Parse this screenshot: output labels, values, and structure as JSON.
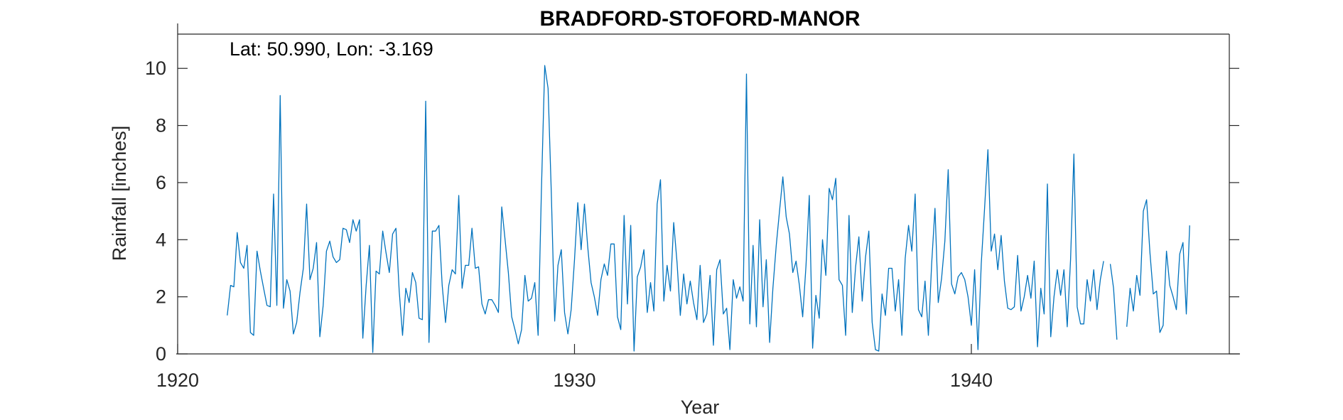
{
  "chart_data": {
    "type": "line",
    "title": "BRADFORD-STOFORD-MANOR",
    "annotation": "Lat: 50.990, Lon: -3.169",
    "xlabel": "Year",
    "ylabel": "Rainfall [inches]",
    "xlim": [
      1920,
      1946.5
    ],
    "ylim": [
      0,
      11.2
    ],
    "xticks": [
      1920,
      1930,
      1940
    ],
    "yticks": [
      0,
      2,
      4,
      6,
      8,
      10
    ],
    "grid": false,
    "color": "#0072BD",
    "start_year": 1921,
    "start_month": 4,
    "series": [
      {
        "values": [
          1.35,
          2.4,
          2.35,
          4.25,
          3.2,
          3.0,
          3.8,
          0.75,
          0.65,
          3.6,
          2.9,
          2.3,
          1.7,
          1.65,
          5.6,
          1.7,
          9.05,
          1.6,
          2.6,
          2.2,
          0.7,
          1.1,
          2.15,
          3.0,
          5.25,
          2.6,
          3.0,
          3.9,
          0.6,
          1.7,
          3.6,
          3.95,
          3.4,
          3.2,
          3.3,
          4.4,
          4.35,
          3.9,
          4.7,
          4.3,
          4.7,
          0.55,
          2.4,
          3.8,
          0.05,
          2.9,
          2.8,
          4.3,
          3.55,
          2.85,
          4.2,
          4.4,
          2.2,
          0.65,
          2.3,
          1.8,
          2.85,
          2.5,
          1.25,
          1.2,
          8.85,
          0.4,
          4.3,
          4.3,
          4.5,
          2.4,
          1.1,
          2.4,
          2.95,
          2.8,
          5.55,
          2.3,
          3.1,
          3.1,
          4.4,
          3.0,
          3.05,
          1.75,
          1.4,
          1.9,
          1.9,
          1.7,
          1.45,
          5.15,
          4.0,
          2.85,
          1.3,
          0.85,
          0.35,
          0.85,
          2.75,
          1.85,
          1.95,
          2.5,
          0.65,
          5.7,
          10.1,
          9.3,
          5.6,
          1.15,
          3.1,
          3.65,
          1.45,
          0.7,
          1.55,
          3.3,
          5.3,
          3.65,
          5.25,
          3.75,
          2.5,
          2.0,
          1.35,
          2.6,
          3.15,
          2.75,
          3.85,
          3.85,
          1.3,
          0.85,
          4.85,
          1.75,
          4.5,
          0.1,
          2.7,
          3.05,
          3.65,
          1.45,
          2.5,
          1.5,
          5.25,
          6.1,
          1.85,
          3.1,
          2.2,
          4.6,
          3.2,
          1.35,
          2.8,
          1.75,
          2.55,
          1.8,
          1.2,
          3.1,
          1.1,
          1.4,
          2.75,
          0.3,
          2.95,
          3.3,
          1.4,
          1.6,
          0.15,
          2.6,
          1.95,
          2.35,
          1.85,
          9.8,
          1.05,
          3.8,
          0.95,
          4.7,
          1.65,
          3.3,
          0.4,
          2.3,
          3.8,
          5.0,
          6.2,
          4.8,
          4.2,
          2.85,
          3.25,
          2.4,
          1.3,
          3.1,
          5.55,
          0.2,
          2.05,
          1.25,
          4.0,
          2.75,
          5.8,
          5.4,
          6.15,
          2.6,
          2.4,
          0.65,
          4.85,
          1.45,
          3.05,
          4.1,
          1.85,
          3.4,
          4.3,
          1.1,
          0.15,
          0.1,
          2.1,
          1.35,
          3.0,
          3.0,
          1.5,
          2.6,
          0.65,
          3.35,
          4.5,
          3.6,
          5.6,
          1.55,
          1.3,
          2.55,
          0.65,
          3.15,
          5.1,
          1.8,
          2.65,
          3.95,
          6.45,
          2.45,
          2.1,
          2.7,
          2.85,
          2.6,
          2.0,
          1.0,
          2.95,
          0.15,
          3.15,
          5.1,
          7.15,
          3.6,
          4.2,
          2.95,
          4.15,
          2.55,
          1.6,
          1.55,
          1.65,
          3.45,
          1.5,
          2.0,
          2.75,
          1.95,
          3.25,
          0.25,
          2.3,
          1.4,
          5.95,
          0.6,
          2.0,
          2.95,
          2.05,
          2.95,
          0.95,
          3.3,
          7.0,
          1.65,
          1.05,
          1.05,
          2.6,
          1.85,
          2.95,
          1.55,
          2.6,
          3.25,
          null,
          3.15,
          2.3,
          0.5,
          null,
          null,
          0.95,
          2.3,
          1.5,
          2.75,
          2.05,
          5.0,
          5.4,
          3.55,
          2.1,
          2.2,
          0.75,
          1.0,
          3.6,
          2.4,
          2.0,
          1.55,
          3.5,
          3.9,
          1.4,
          4.5
        ]
      }
    ]
  }
}
